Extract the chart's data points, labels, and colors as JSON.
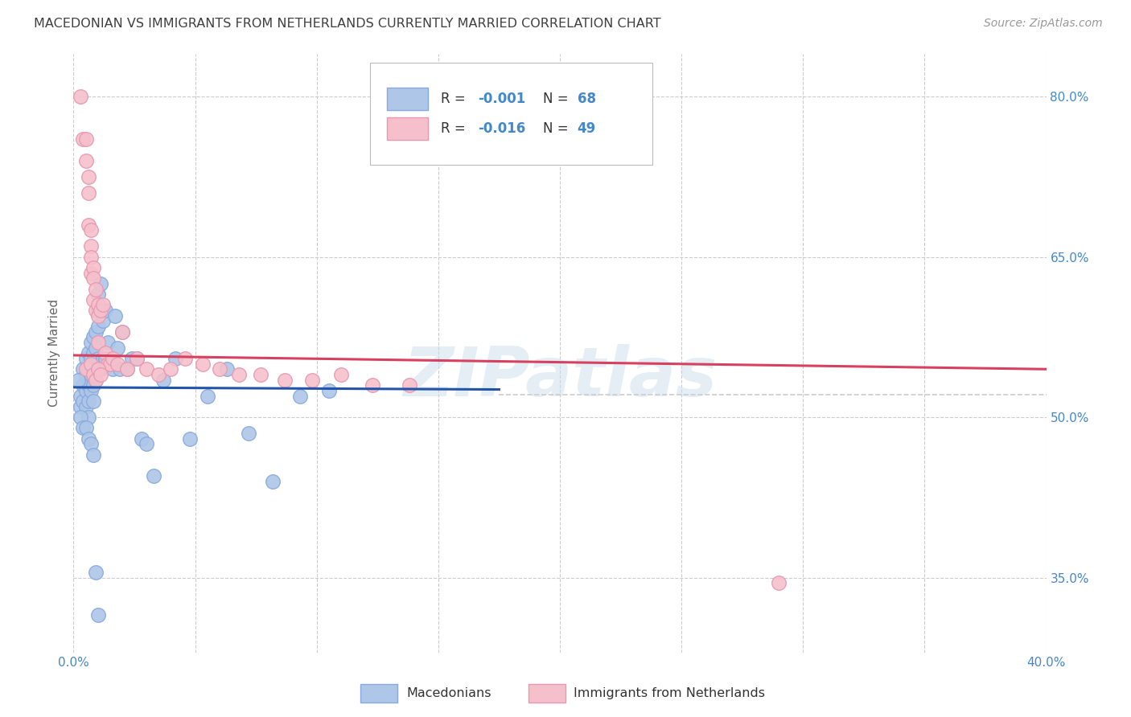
{
  "title": "MACEDONIAN VS IMMIGRANTS FROM NETHERLANDS CURRENTLY MARRIED CORRELATION CHART",
  "source": "Source: ZipAtlas.com",
  "ylabel": "Currently Married",
  "xlim": [
    0.0,
    0.4
  ],
  "ylim": [
    0.28,
    0.84
  ],
  "yticks": [
    0.35,
    0.5,
    0.65,
    0.8
  ],
  "ytick_labels": [
    "35.0%",
    "50.0%",
    "65.0%",
    "80.0%"
  ],
  "xticks": [
    0.0,
    0.05,
    0.1,
    0.15,
    0.2,
    0.25,
    0.3,
    0.35,
    0.4
  ],
  "xtick_labels": [
    "0.0%",
    "",
    "",
    "",
    "",
    "",
    "",
    "",
    "40.0%"
  ],
  "watermark": "ZIPatlas",
  "legend_r_blue": "R = -0.001",
  "legend_n_blue": "N = 68",
  "legend_r_pink": "R = -0.016",
  "legend_n_pink": "N = 49",
  "legend_label_blue": "Macedonians",
  "legend_label_pink": "Immigrants from Netherlands",
  "blue_color": "#aec6e8",
  "pink_color": "#f5c0cc",
  "blue_line_color": "#2255aa",
  "pink_line_color": "#d84060",
  "dot_edge_blue": "#88aadd",
  "dot_edge_pink": "#e898b0",
  "blue_x": [
    0.003,
    0.003,
    0.004,
    0.004,
    0.004,
    0.005,
    0.005,
    0.005,
    0.005,
    0.006,
    0.006,
    0.006,
    0.006,
    0.006,
    0.007,
    0.007,
    0.007,
    0.007,
    0.008,
    0.008,
    0.008,
    0.008,
    0.008,
    0.009,
    0.009,
    0.009,
    0.009,
    0.01,
    0.01,
    0.01,
    0.01,
    0.011,
    0.011,
    0.012,
    0.012,
    0.013,
    0.013,
    0.014,
    0.015,
    0.016,
    0.017,
    0.018,
    0.019,
    0.02,
    0.022,
    0.024,
    0.026,
    0.028,
    0.03,
    0.033,
    0.037,
    0.042,
    0.048,
    0.055,
    0.063,
    0.072,
    0.082,
    0.093,
    0.105,
    0.002,
    0.003,
    0.004,
    0.005,
    0.006,
    0.007,
    0.008,
    0.009,
    0.01
  ],
  "blue_y": [
    0.52,
    0.51,
    0.53,
    0.545,
    0.515,
    0.555,
    0.54,
    0.525,
    0.51,
    0.56,
    0.545,
    0.53,
    0.515,
    0.5,
    0.57,
    0.555,
    0.54,
    0.525,
    0.575,
    0.56,
    0.545,
    0.53,
    0.515,
    0.58,
    0.565,
    0.55,
    0.535,
    0.615,
    0.6,
    0.585,
    0.555,
    0.625,
    0.545,
    0.59,
    0.555,
    0.6,
    0.555,
    0.57,
    0.555,
    0.545,
    0.595,
    0.565,
    0.545,
    0.58,
    0.545,
    0.555,
    0.555,
    0.48,
    0.475,
    0.445,
    0.535,
    0.555,
    0.48,
    0.52,
    0.545,
    0.485,
    0.44,
    0.52,
    0.525,
    0.535,
    0.5,
    0.49,
    0.49,
    0.48,
    0.475,
    0.465,
    0.355,
    0.315
  ],
  "pink_x": [
    0.003,
    0.004,
    0.005,
    0.005,
    0.006,
    0.006,
    0.006,
    0.007,
    0.007,
    0.007,
    0.007,
    0.008,
    0.008,
    0.008,
    0.009,
    0.009,
    0.01,
    0.01,
    0.01,
    0.011,
    0.012,
    0.013,
    0.014,
    0.015,
    0.016,
    0.018,
    0.02,
    0.022,
    0.026,
    0.03,
    0.035,
    0.04,
    0.046,
    0.053,
    0.06,
    0.068,
    0.077,
    0.087,
    0.098,
    0.11,
    0.123,
    0.138,
    0.005,
    0.007,
    0.008,
    0.009,
    0.01,
    0.011,
    0.29
  ],
  "pink_y": [
    0.8,
    0.76,
    0.76,
    0.74,
    0.725,
    0.71,
    0.68,
    0.675,
    0.66,
    0.65,
    0.635,
    0.64,
    0.63,
    0.61,
    0.62,
    0.6,
    0.605,
    0.595,
    0.57,
    0.6,
    0.605,
    0.56,
    0.55,
    0.55,
    0.555,
    0.55,
    0.58,
    0.545,
    0.555,
    0.545,
    0.54,
    0.545,
    0.555,
    0.55,
    0.545,
    0.54,
    0.54,
    0.535,
    0.535,
    0.54,
    0.53,
    0.53,
    0.545,
    0.55,
    0.54,
    0.535,
    0.545,
    0.54,
    0.345
  ],
  "blue_trend_x": [
    0.0,
    0.175
  ],
  "blue_trend_y": [
    0.528,
    0.526
  ],
  "pink_trend_x": [
    0.0,
    0.4
  ],
  "pink_trend_y": [
    0.558,
    0.545
  ],
  "dashed_line_y": 0.521,
  "dashed_line_x_start": 0.175,
  "dashed_line_x_end": 0.4,
  "background_color": "#ffffff",
  "grid_color": "#cccccc",
  "title_color": "#404040",
  "axis_color": "#4488cc",
  "text_color": "#4488cc"
}
